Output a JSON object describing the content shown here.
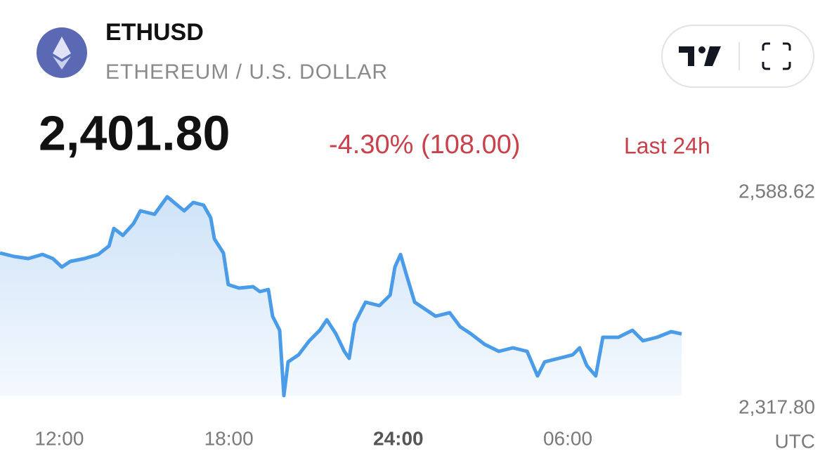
{
  "header": {
    "symbol": "ETHUSD",
    "name": "ETHEREUM / U.S. DOLLAR",
    "price": "2,401.80",
    "change": "-4.30% (108.00)",
    "period": "Last 24h"
  },
  "chart_data": {
    "type": "line",
    "x": [
      9.9,
      10.4,
      10.9,
      11.4,
      11.77,
      12.09,
      12.39,
      12.89,
      13.38,
      13.76,
      13.93,
      14.25,
      14.63,
      14.87,
      15.37,
      15.82,
      16.12,
      16.42,
      16.74,
      17.11,
      17.36,
      17.49,
      17.81,
      17.98,
      18.36,
      18.86,
      19.1,
      19.4,
      19.55,
      19.8,
      19.95,
      20.1,
      20.47,
      20.85,
      21.22,
      21.47,
      21.79,
      22.09,
      22.26,
      22.46,
      22.84,
      23.33,
      23.71,
      23.88,
      24.08,
      24.28,
      24.58,
      24.95,
      25.32,
      25.82,
      26.19,
      26.57,
      27.06,
      27.56,
      28.06,
      28.56,
      28.93,
      29.18,
      29.68,
      30.17,
      30.42,
      30.67,
      30.99,
      31.24,
      31.79,
      32.29,
      32.66,
      33.16,
      33.66,
      34.03
    ],
    "series": [
      {
        "color": "#4a9be8",
        "values": [
          2512.0,
          2507.3,
          2504.4,
          2510.1,
          2504.4,
          2492.9,
          2500.6,
          2504.4,
          2510.1,
          2521.6,
          2545.5,
          2536.0,
          2552.2,
          2569.5,
          2564.7,
          2588.62,
          2579.0,
          2569.5,
          2580.9,
          2577.1,
          2559.9,
          2531.2,
          2512.0,
          2469.0,
          2464.2,
          2466.1,
          2459.4,
          2462.3,
          2425.9,
          2406.8,
          2317.8,
          2363.7,
          2373.3,
          2392.4,
          2406.8,
          2421.1,
          2402.0,
          2378.1,
          2368.5,
          2416.4,
          2445.1,
          2440.3,
          2454.6,
          2492.9,
          2510.1,
          2483.3,
          2445.1,
          2435.5,
          2425.9,
          2430.7,
          2411.6,
          2402.0,
          2387.6,
          2378.1,
          2382.9,
          2378.1,
          2344.6,
          2363.7,
          2368.5,
          2373.3,
          2382.9,
          2358.9,
          2344.6,
          2397.2,
          2397.2,
          2406.8,
          2392.4,
          2397.2,
          2404.9,
          2401.8
        ]
      }
    ],
    "xlim": [
      9.9,
      34.9
    ],
    "xticks": [
      {
        "value": 12,
        "label": "12:00"
      },
      {
        "value": 18,
        "label": "18:00"
      },
      {
        "value": 24,
        "label": "24:00"
      },
      {
        "value": 30,
        "label": "06:00"
      }
    ],
    "xlabel": "UTC",
    "ylim": [
      2317.8,
      2588.62
    ],
    "yticks": [
      {
        "value": 2588.62,
        "label": "2,588.62"
      },
      {
        "value": 2317.8,
        "label": "2,317.80"
      }
    ]
  }
}
